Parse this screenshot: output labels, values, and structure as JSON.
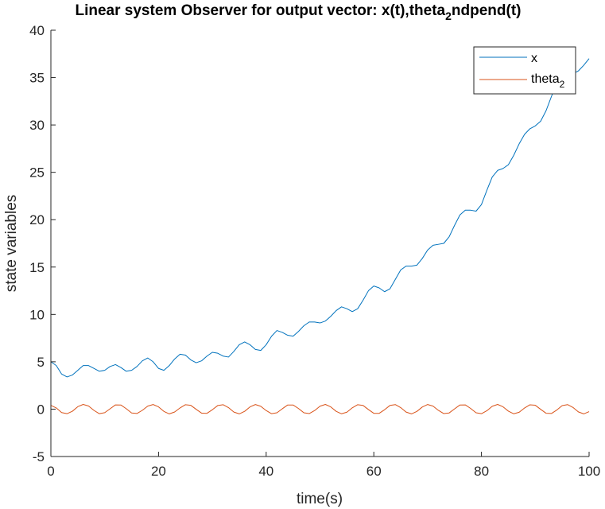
{
  "chart_data": {
    "type": "line",
    "title": "Linear system Observer for output vector: x(t),theta",
    "title_sub": "2",
    "title_tail": "ndpend(t)",
    "xlabel": "time(s)",
    "ylabel": "state variables",
    "xlim": [
      0,
      100
    ],
    "ylim": [
      -5,
      40
    ],
    "xticks": [
      0,
      20,
      40,
      60,
      80,
      100
    ],
    "yticks": [
      -5,
      0,
      5,
      10,
      15,
      20,
      25,
      30,
      35,
      40
    ],
    "grid": false,
    "legend_position": "top-right",
    "x": [
      0,
      1,
      2,
      3,
      4,
      5,
      6,
      7,
      8,
      9,
      10,
      11,
      12,
      13,
      14,
      15,
      16,
      17,
      18,
      19,
      20,
      21,
      22,
      23,
      24,
      25,
      26,
      27,
      28,
      29,
      30,
      31,
      32,
      33,
      34,
      35,
      36,
      37,
      38,
      39,
      40,
      41,
      42,
      43,
      44,
      45,
      46,
      47,
      48,
      49,
      50,
      51,
      52,
      53,
      54,
      55,
      56,
      57,
      58,
      59,
      60,
      61,
      62,
      63,
      64,
      65,
      66,
      67,
      68,
      69,
      70,
      71,
      72,
      73,
      74,
      75,
      76,
      77,
      78,
      79,
      80,
      81,
      82,
      83,
      84,
      85,
      86,
      87,
      88,
      89,
      90,
      91,
      92,
      93,
      94,
      95,
      96,
      97,
      98,
      99,
      100
    ],
    "series": [
      {
        "name": "x",
        "color": "#0072BD",
        "values": [
          5.0,
          4.6,
          3.7,
          3.4,
          3.6,
          4.1,
          4.6,
          4.6,
          4.3,
          4.0,
          4.1,
          4.5,
          4.7,
          4.4,
          4.0,
          4.1,
          4.5,
          5.1,
          5.4,
          5.0,
          4.3,
          4.1,
          4.6,
          5.3,
          5.8,
          5.7,
          5.2,
          4.9,
          5.1,
          5.6,
          6.0,
          5.9,
          5.6,
          5.5,
          6.1,
          6.8,
          7.1,
          6.8,
          6.3,
          6.2,
          6.8,
          7.7,
          8.3,
          8.1,
          7.8,
          7.7,
          8.2,
          8.8,
          9.2,
          9.2,
          9.1,
          9.3,
          9.8,
          10.4,
          10.8,
          10.6,
          10.3,
          10.6,
          11.5,
          12.5,
          13.0,
          12.8,
          12.4,
          12.7,
          13.7,
          14.7,
          15.1,
          15.1,
          15.2,
          15.9,
          16.8,
          17.3,
          17.4,
          17.5,
          18.2,
          19.4,
          20.5,
          21.0,
          21.0,
          20.9,
          21.6,
          23.1,
          24.5,
          25.2,
          25.4,
          25.8,
          26.8,
          28.0,
          29.0,
          29.6,
          29.9,
          30.4,
          31.5,
          33.0,
          34.5,
          35.2,
          35.3,
          35.4,
          35.7,
          36.3,
          37.0
        ]
      },
      {
        "name": "theta",
        "name_sub": "2",
        "color": "#D95319",
        "values": [
          0.4,
          0.13,
          -0.36,
          -0.48,
          -0.22,
          0.26,
          0.5,
          0.33,
          -0.13,
          -0.48,
          -0.37,
          0.04,
          0.45,
          0.44,
          0.05,
          -0.4,
          -0.46,
          -0.12,
          0.32,
          0.49,
          0.24,
          -0.24,
          -0.5,
          -0.3,
          0.13,
          0.47,
          0.4,
          -0.02,
          -0.42,
          -0.44,
          -0.06,
          0.38,
          0.47,
          0.16,
          -0.31,
          -0.5,
          -0.23,
          0.24,
          0.49,
          0.3,
          -0.15,
          -0.48,
          -0.38,
          0.04,
          0.44,
          0.44,
          0.07,
          -0.38,
          -0.47,
          -0.15,
          0.31,
          0.5,
          0.24,
          -0.23,
          -0.49,
          -0.32,
          0.14,
          0.47,
          0.39,
          -0.04,
          -0.44,
          -0.44,
          -0.06,
          0.39,
          0.48,
          0.16,
          -0.31,
          -0.5,
          -0.24,
          0.22,
          0.49,
          0.32,
          -0.13,
          -0.47,
          -0.4,
          0.03,
          0.44,
          0.45,
          0.07,
          -0.38,
          -0.48,
          -0.17,
          0.3,
          0.5,
          0.25,
          -0.21,
          -0.49,
          -0.33,
          0.12,
          0.46,
          0.41,
          -0.02,
          -0.43,
          -0.46,
          -0.09,
          0.37,
          0.48,
          0.18,
          -0.29,
          -0.5,
          -0.26
        ]
      }
    ]
  }
}
